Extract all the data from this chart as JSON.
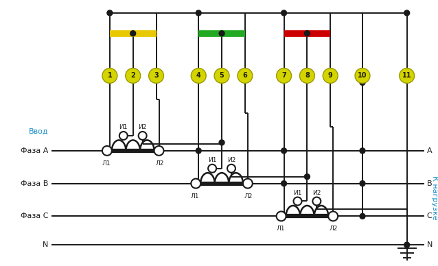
{
  "bg_color": "#ffffff",
  "node_numbers": [
    "1",
    "2",
    "3",
    "4",
    "5",
    "6",
    "7",
    "8",
    "9",
    "10",
    "11"
  ],
  "fuse_colors": [
    "#E8C800",
    "#22aa22",
    "#cc0000"
  ],
  "phase_labels_left": [
    "Фаза A",
    "Фаза B",
    "Фаза C",
    "N"
  ],
  "input_label": "Ввод",
  "right_labels": [
    "A",
    "B",
    "C",
    "N"
  ],
  "output_label": "К нагрузке"
}
